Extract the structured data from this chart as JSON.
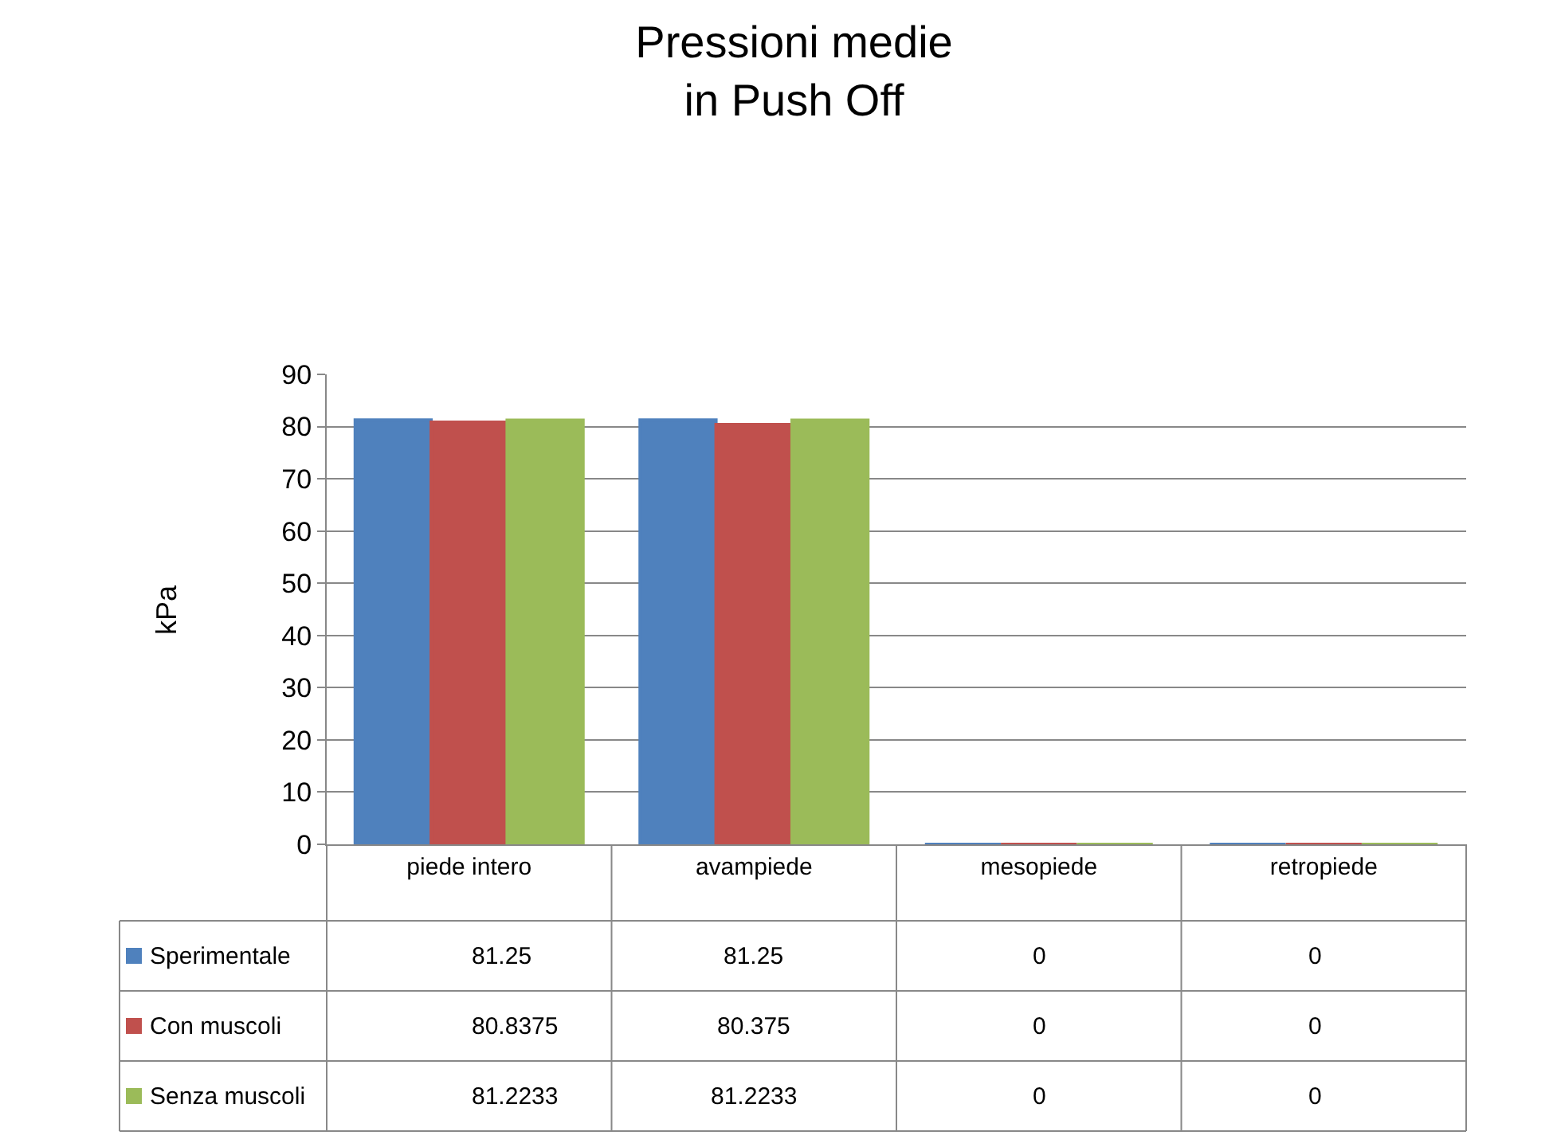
{
  "chart_data": {
    "type": "bar",
    "title": "Pressioni medie\nin Push Off",
    "ylabel": "kPa",
    "categories": [
      "piede intero",
      "avampiede",
      "mesopiede",
      "retropiede"
    ],
    "series": [
      {
        "name": "Sperimentale",
        "color": "#4f81bd",
        "values": [
          81.25,
          81.25,
          0,
          0
        ]
      },
      {
        "name": "Con muscoli",
        "color": "#c0504d",
        "values": [
          80.8375,
          80.375,
          0,
          0
        ]
      },
      {
        "name": "Senza muscoli",
        "color": "#9bbb59",
        "values": [
          81.2233,
          81.2233,
          0,
          0
        ]
      }
    ],
    "ylim": [
      0,
      90
    ],
    "yticks": [
      0,
      10,
      20,
      30,
      40,
      50,
      60,
      70,
      80,
      90
    ],
    "grid": "y",
    "data_labels": true,
    "legend": "bottom left"
  }
}
